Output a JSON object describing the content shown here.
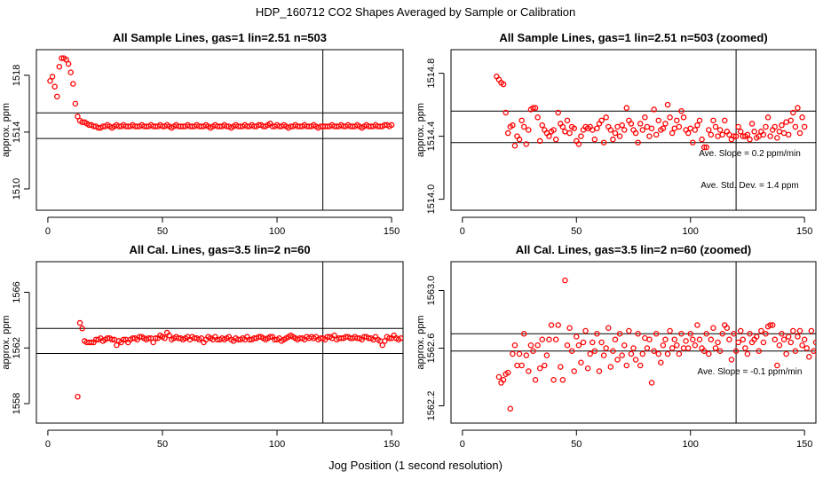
{
  "figure": {
    "title": "HDP_160712  CO2 Shapes Averaged by Sample or Calibration",
    "xlabel": "Jog Position (1 second resolution)"
  },
  "colors": {
    "points": "#ff0000",
    "lines": "#000000"
  },
  "chart_data": [
    {
      "type": "scatter",
      "title": "All Sample Lines, gas=1 lin=2.51 n=503",
      "ylabel": "approx. ppm",
      "xlim": [
        -5,
        155
      ],
      "ylim": [
        1508.5,
        1519.8
      ],
      "xticks": [
        "0",
        "50",
        "100",
        "150"
      ],
      "yticks": [
        "1510",
        "1514",
        "1518"
      ],
      "ytick_values": [
        1510,
        1514,
        1518
      ],
      "hlines": [
        1515.35,
        1513.55
      ],
      "vline": 120,
      "x_start": 1,
      "y": [
        1517.6,
        1517.9,
        1517.2,
        1516.5,
        1518.6,
        1519.2,
        1519.2,
        1519.1,
        1518.8,
        1518.2,
        1517.4,
        1516.0,
        1515.1,
        1514.8,
        1514.7,
        1514.7,
        1514.6,
        1514.5,
        1514.5,
        1514.4,
        1514.4,
        1514.3,
        1514.3,
        1514.4,
        1514.4,
        1514.5,
        1514.4,
        1514.3,
        1514.4,
        1514.5,
        1514.4,
        1514.4,
        1514.5,
        1514.4,
        1514.4,
        1514.4,
        1514.5,
        1514.4,
        1514.4,
        1514.4,
        1514.5,
        1514.4,
        1514.4,
        1514.4,
        1514.5,
        1514.4,
        1514.4,
        1514.4,
        1514.5,
        1514.4,
        1514.4,
        1514.5,
        1514.4,
        1514.3,
        1514.4,
        1514.5,
        1514.4,
        1514.4,
        1514.4,
        1514.4,
        1514.5,
        1514.4,
        1514.4,
        1514.4,
        1514.5,
        1514.4,
        1514.4,
        1514.4,
        1514.5,
        1514.4,
        1514.3,
        1514.4,
        1514.5,
        1514.4,
        1514.4,
        1514.4,
        1514.5,
        1514.4,
        1514.4,
        1514.3,
        1514.4,
        1514.5,
        1514.4,
        1514.4,
        1514.4,
        1514.5,
        1514.4,
        1514.4,
        1514.5,
        1514.4,
        1514.4,
        1514.5,
        1514.5,
        1514.4,
        1514.4,
        1514.5,
        1514.6,
        1514.4,
        1514.4,
        1514.5,
        1514.4,
        1514.4,
        1514.5,
        1514.4,
        1514.3,
        1514.4,
        1514.4,
        1514.5,
        1514.4,
        1514.4,
        1514.4,
        1514.5,
        1514.4,
        1514.4,
        1514.4,
        1514.5,
        1514.4,
        1514.3,
        1514.4,
        1514.4,
        1514.4,
        1514.4,
        1514.4,
        1514.5,
        1514.4,
        1514.4,
        1514.4,
        1514.5,
        1514.4,
        1514.4,
        1514.5,
        1514.4,
        1514.4,
        1514.4,
        1514.5,
        1514.4,
        1514.3,
        1514.4,
        1514.5,
        1514.4,
        1514.4,
        1514.4,
        1514.5,
        1514.4,
        1514.4,
        1514.4,
        1514.5,
        1514.5,
        1514.4,
        1514.5
      ],
      "annotations": []
    },
    {
      "type": "scatter",
      "title": "All Sample Lines, gas=1 lin=2.51 n=503 (zoomed)",
      "ylabel": "approx. ppm",
      "xlim": [
        -5,
        155
      ],
      "ylim": [
        1513.93,
        1514.95
      ],
      "xticks": [
        "0",
        "50",
        "100",
        "150"
      ],
      "yticks": [
        "1514.0",
        "1514.4",
        "1514.8"
      ],
      "ytick_values": [
        1514.0,
        1514.4,
        1514.8
      ],
      "hlines": [
        1514.56,
        1514.36
      ],
      "vline": 120,
      "x_start": 15,
      "y": [
        1514.78,
        1514.76,
        1514.74,
        1514.73,
        1514.55,
        1514.42,
        1514.46,
        1514.47,
        1514.34,
        1514.4,
        1514.38,
        1514.5,
        1514.46,
        1514.35,
        1514.44,
        1514.57,
        1514.58,
        1514.58,
        1514.52,
        1514.37,
        1514.47,
        1514.44,
        1514.42,
        1514.4,
        1514.43,
        1514.44,
        1514.38,
        1514.55,
        1514.48,
        1514.46,
        1514.43,
        1514.5,
        1514.42,
        1514.46,
        1514.45,
        1514.37,
        1514.35,
        1514.4,
        1514.44,
        1514.46,
        1514.45,
        1514.46,
        1514.44,
        1514.38,
        1514.45,
        1514.48,
        1514.5,
        1514.36,
        1514.52,
        1514.46,
        1514.44,
        1514.38,
        1514.42,
        1514.46,
        1514.4,
        1514.47,
        1514.44,
        1514.58,
        1514.5,
        1514.48,
        1514.44,
        1514.42,
        1514.36,
        1514.48,
        1514.44,
        1514.52,
        1514.46,
        1514.4,
        1514.45,
        1514.57,
        1514.41,
        1514.5,
        1514.44,
        1514.45,
        1514.48,
        1514.6,
        1514.52,
        1514.42,
        1514.45,
        1514.5,
        1514.46,
        1514.56,
        1514.52,
        1514.44,
        1514.42,
        1514.45,
        1514.36,
        1514.44,
        1514.47,
        1514.5,
        1514.38,
        1514.33,
        1514.33,
        1514.44,
        1514.41,
        1514.5,
        1514.46,
        1514.4,
        1514.44,
        1514.41,
        1514.5,
        1514.43,
        1514.41,
        1514.38,
        1514.4,
        1514.4,
        1514.46,
        1514.43,
        1514.4,
        1514.4,
        1514.41,
        1514.38,
        1514.48,
        1514.43,
        1514.39,
        1514.4,
        1514.43,
        1514.41,
        1514.46,
        1514.52,
        1514.4,
        1514.44,
        1514.46,
        1514.39,
        1514.43,
        1514.47,
        1514.42,
        1514.49,
        1514.41,
        1514.5,
        1514.55,
        1514.46,
        1514.58,
        1514.42,
        1514.52,
        1514.46
      ],
      "annotations": [
        {
          "text": "Ave. Slope = 0.2  ppm/min",
          "x": 126,
          "y": 1514.275
        },
        {
          "text": "Ave. Std. Dev. =  1.4  ppm",
          "x": 126,
          "y": 1514.07
        }
      ]
    },
    {
      "type": "scatter",
      "title": "All Cal. Lines, gas=3.5 lin=2 n=60",
      "ylabel": "approx. ppm",
      "xlim": [
        -5,
        155
      ],
      "ylim": [
        1556.6,
        1568.2
      ],
      "xticks": [
        "0",
        "50",
        "100",
        "150"
      ],
      "yticks": [
        "1558",
        "1562",
        "1566"
      ],
      "ytick_values": [
        1558,
        1562,
        1566
      ],
      "hlines": [
        1563.4,
        1561.6
      ],
      "vline": 120,
      "x_start": 13,
      "y": [
        1558.5,
        1563.8,
        1563.4,
        1562.5,
        1562.4,
        1562.4,
        1562.4,
        1562.4,
        1562.6,
        1562.6,
        1562.7,
        1562.5,
        1562.6,
        1562.7,
        1562.7,
        1562.6,
        1562.6,
        1562.2,
        1562.5,
        1562.4,
        1562.6,
        1562.6,
        1562.4,
        1562.6,
        1562.7,
        1562.7,
        1562.6,
        1562.8,
        1562.8,
        1562.7,
        1562.6,
        1562.7,
        1562.7,
        1562.4,
        1562.7,
        1562.7,
        1562.9,
        1562.8,
        1562.7,
        1563.1,
        1562.9,
        1562.6,
        1562.7,
        1562.8,
        1562.7,
        1562.7,
        1562.6,
        1562.7,
        1562.8,
        1562.6,
        1562.8,
        1562.7,
        1562.7,
        1562.6,
        1562.7,
        1562.4,
        1562.6,
        1562.8,
        1562.7,
        1562.6,
        1562.8,
        1562.6,
        1562.6,
        1562.7,
        1562.6,
        1562.7,
        1562.8,
        1562.6,
        1562.5,
        1562.7,
        1562.6,
        1562.6,
        1562.7,
        1562.6,
        1562.8,
        1562.6,
        1562.6,
        1562.7,
        1562.7,
        1562.8,
        1562.8,
        1562.7,
        1562.6,
        1562.7,
        1562.8,
        1562.8,
        1562.6,
        1562.6,
        1562.7,
        1562.5,
        1562.6,
        1562.7,
        1562.8,
        1562.9,
        1562.8,
        1562.7,
        1562.6,
        1562.7,
        1562.7,
        1562.6,
        1562.8,
        1562.7,
        1562.8,
        1562.7,
        1562.8,
        1562.6,
        1562.7,
        1562.7,
        1562.6,
        1562.8,
        1562.8,
        1562.7,
        1562.9,
        1562.6,
        1562.7,
        1562.7,
        1562.7,
        1562.8,
        1562.8,
        1562.7,
        1562.7,
        1562.8,
        1562.7,
        1562.7,
        1562.6,
        1562.8,
        1562.8,
        1562.7,
        1562.7,
        1562.6,
        1562.8,
        1562.6,
        1562.5,
        1562.2,
        1562.5,
        1562.8,
        1562.7,
        1562.7,
        1562.9,
        1562.7,
        1562.6,
        1562.7
      ],
      "annotations": []
    },
    {
      "type": "scatter",
      "title": "All Cal. Lines, gas=3.5 lin=2 n=60 (zoomed)",
      "ylabel": "approx. ppm",
      "xlim": [
        -5,
        155
      ],
      "ylim": [
        1562.08,
        1563.2
      ],
      "xticks": [
        "0",
        "50",
        "100",
        "150"
      ],
      "yticks": [
        "1562.2",
        "1562.6",
        "1563.0"
      ],
      "ytick_values": [
        1562.2,
        1562.6,
        1563.0
      ],
      "hlines": [
        1562.7,
        1562.58
      ],
      "vline": 120,
      "x_start": 16,
      "y": [
        1562.4,
        1562.36,
        1562.38,
        1562.42,
        1562.43,
        1562.18,
        1562.56,
        1562.62,
        1562.48,
        1562.56,
        1562.48,
        1562.7,
        1562.55,
        1562.44,
        1562.62,
        1562.58,
        1562.38,
        1562.62,
        1562.46,
        1562.66,
        1562.48,
        1562.55,
        1562.66,
        1562.76,
        1562.38,
        1562.66,
        1562.76,
        1562.47,
        1562.38,
        1563.07,
        1562.62,
        1562.74,
        1562.58,
        1562.44,
        1562.68,
        1562.62,
        1562.5,
        1562.64,
        1562.72,
        1562.46,
        1562.56,
        1562.64,
        1562.58,
        1562.7,
        1562.44,
        1562.64,
        1562.55,
        1562.6,
        1562.74,
        1562.47,
        1562.58,
        1562.66,
        1562.52,
        1562.7,
        1562.55,
        1562.62,
        1562.48,
        1562.72,
        1562.56,
        1562.6,
        1562.52,
        1562.7,
        1562.48,
        1562.56,
        1562.67,
        1562.6,
        1562.66,
        1562.36,
        1562.58,
        1562.7,
        1562.56,
        1562.5,
        1562.62,
        1562.66,
        1562.56,
        1562.72,
        1562.6,
        1562.66,
        1562.62,
        1562.56,
        1562.7,
        1562.6,
        1562.65,
        1562.6,
        1562.7,
        1562.66,
        1562.62,
        1562.76,
        1562.66,
        1562.6,
        1562.58,
        1562.7,
        1562.56,
        1562.66,
        1562.74,
        1562.6,
        1562.64,
        1562.58,
        1562.7,
        1562.76,
        1562.74,
        1562.66,
        1562.52,
        1562.7,
        1562.58,
        1562.64,
        1562.72,
        1562.66,
        1562.6,
        1562.56,
        1562.7,
        1562.64,
        1562.66,
        1562.68,
        1562.58,
        1562.72,
        1562.64,
        1562.7,
        1562.75,
        1562.76,
        1562.76,
        1562.66,
        1562.48,
        1562.62,
        1562.7,
        1562.66,
        1562.56,
        1562.68,
        1562.64,
        1562.72,
        1562.58,
        1562.68,
        1562.72,
        1562.62,
        1562.66,
        1562.6,
        1562.54,
        1562.72,
        1562.58,
        1562.64,
        1562.55
      ],
      "annotations": [
        {
          "text": "Ave. Slope =  -0.1  ppm/min",
          "x": 126,
          "y": 1562.42
        }
      ]
    }
  ]
}
